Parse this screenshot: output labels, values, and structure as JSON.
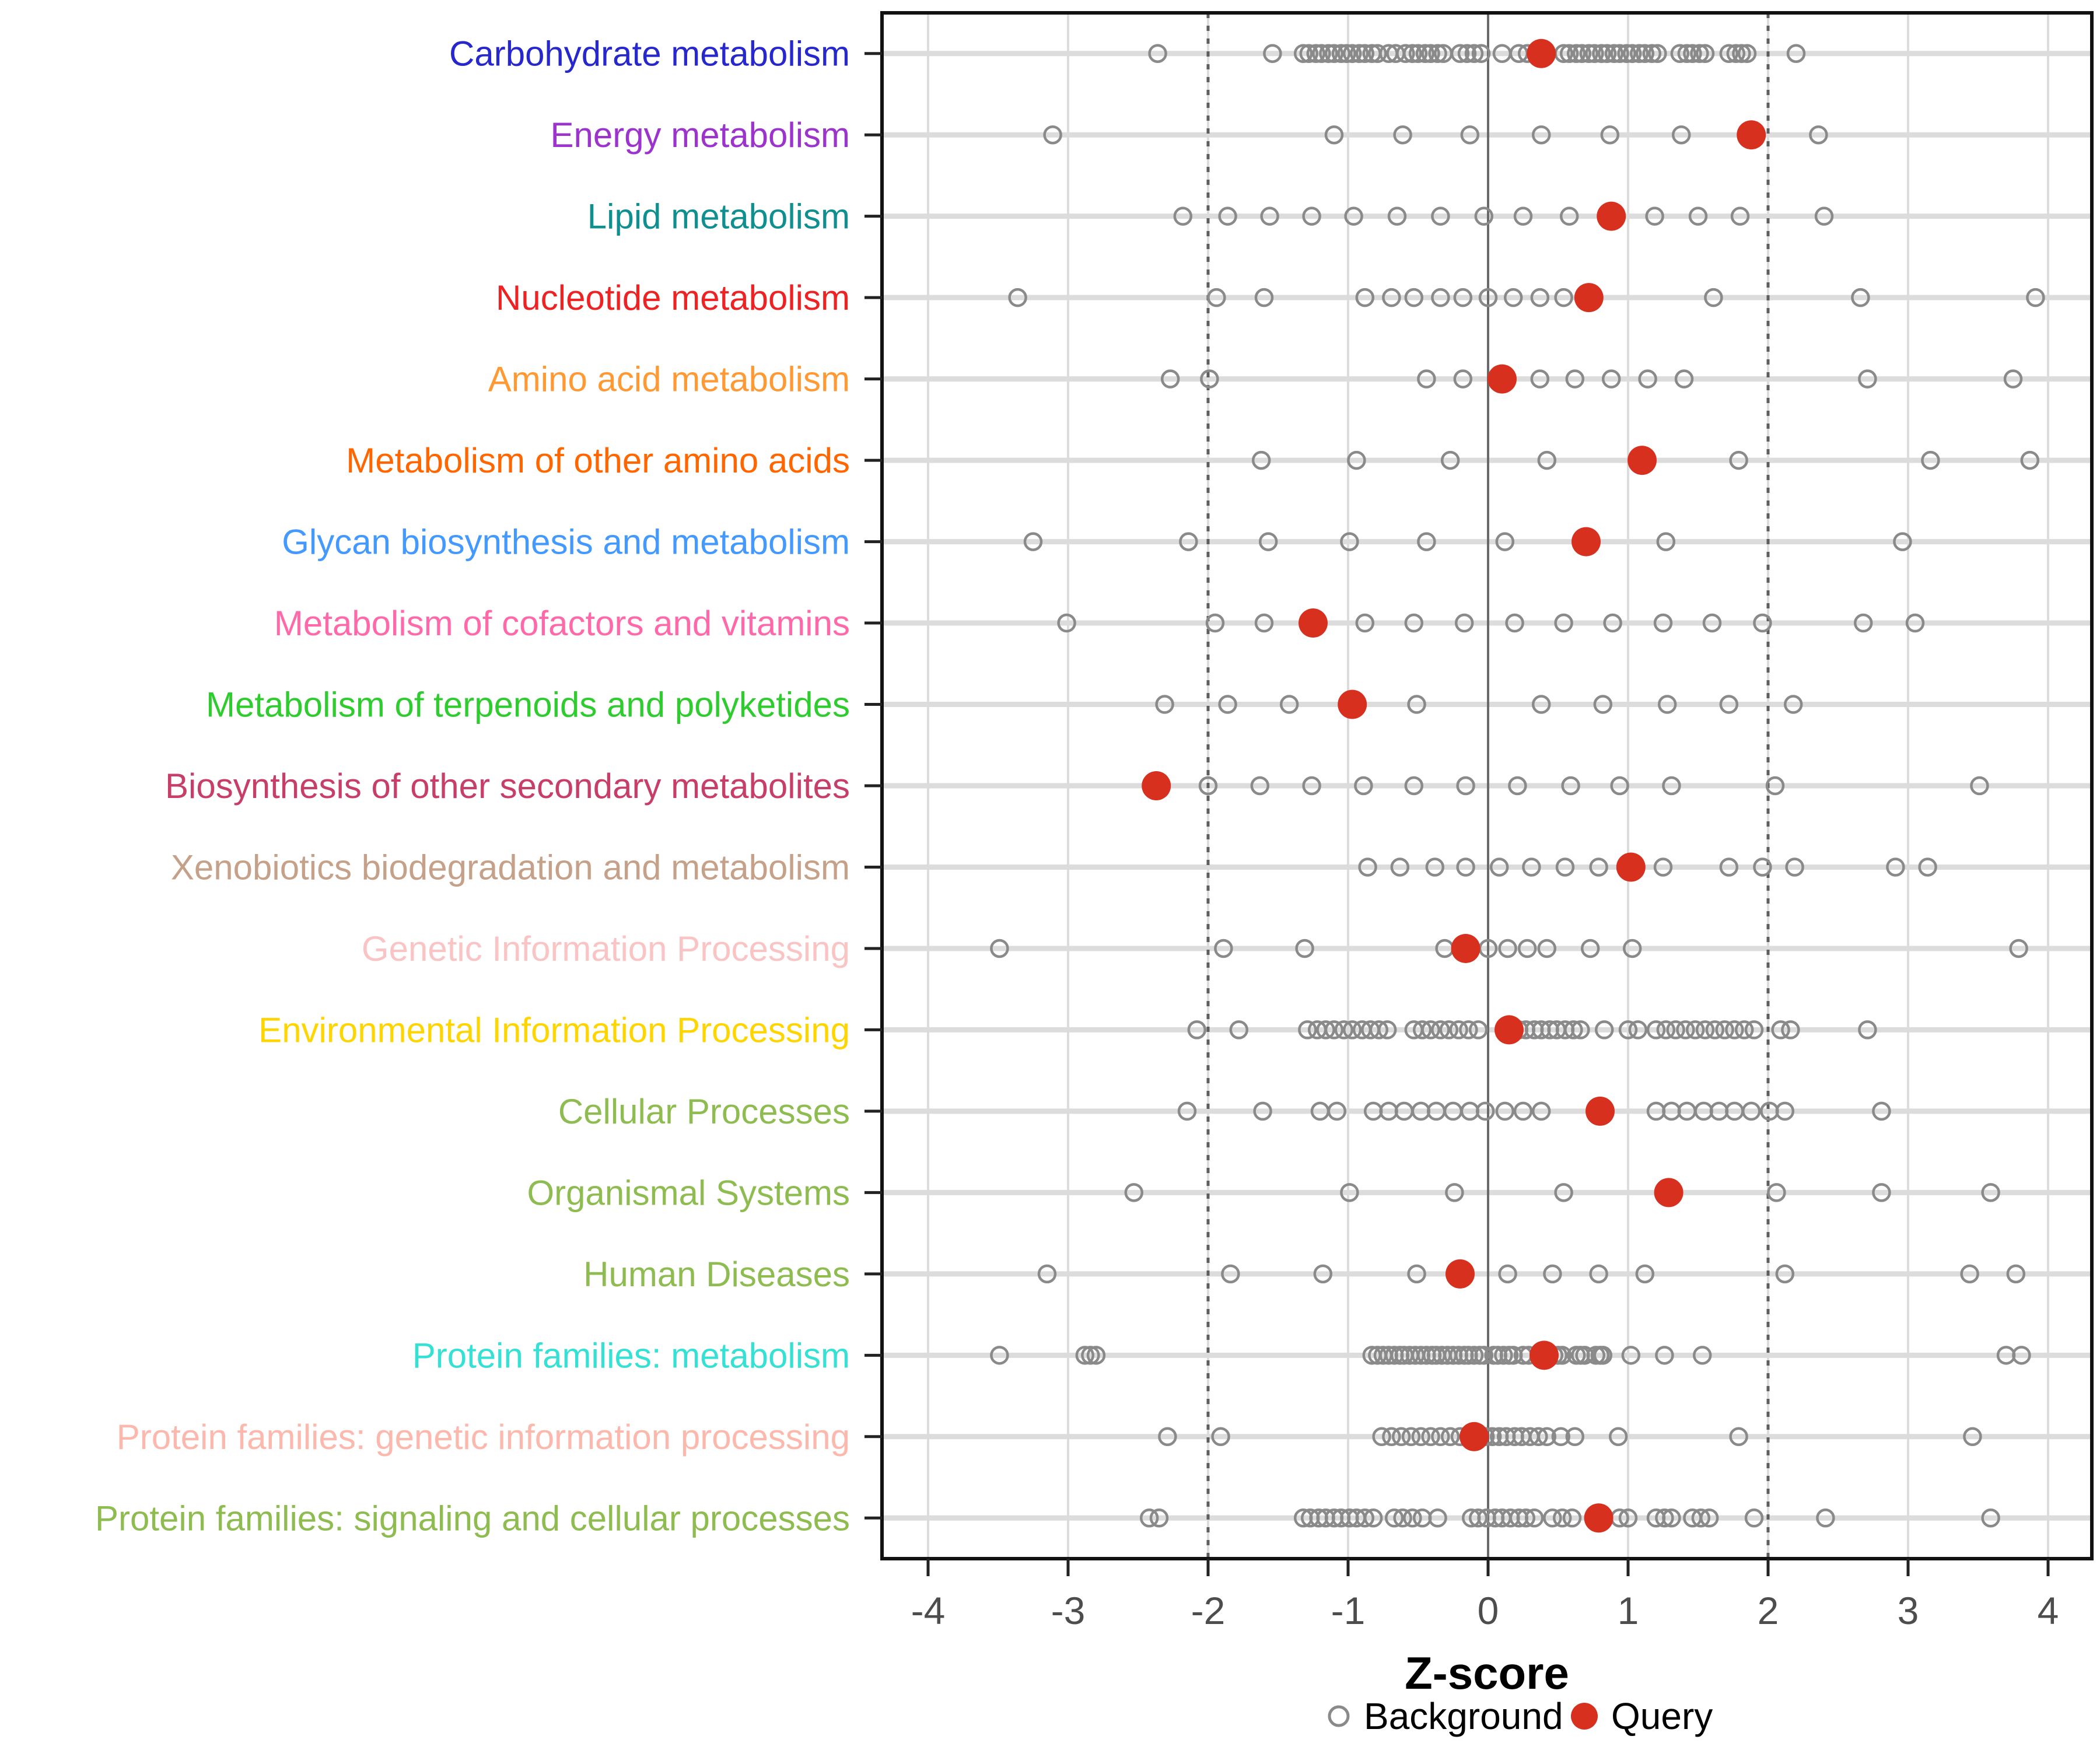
{
  "chart_data": {
    "type": "scatter",
    "title": "",
    "xlabel": "Z-score",
    "ylabel": "",
    "xlim": [
      -4.35,
      4.35
    ],
    "x_ticks": [
      -4,
      -3,
      -2,
      -1,
      0,
      1,
      2,
      3,
      4
    ],
    "zero_line": 0,
    "dashed_lines": [
      -2,
      2
    ],
    "grid": true,
    "legend_position": "bottom",
    "legend": [
      {
        "label": "Background",
        "marker": "open-circle",
        "color": "#8A8A8A"
      },
      {
        "label": "Query",
        "marker": "filled-circle",
        "color": "#D7301F"
      }
    ],
    "categories": [
      {
        "label": "Carbohydrate metabolism",
        "color": "#2727CE",
        "query": 0.38,
        "background": [
          -2.36,
          -1.54,
          -1.32,
          -1.28,
          -1.23,
          -1.19,
          -1.14,
          -1.1,
          -1.05,
          -1.01,
          -0.97,
          -0.92,
          -0.88,
          -0.83,
          -0.79,
          -0.71,
          -0.66,
          -0.59,
          -0.54,
          -0.5,
          -0.45,
          -0.41,
          -0.36,
          -0.32,
          -0.2,
          -0.15,
          -0.1,
          -0.05,
          0.1,
          0.22,
          0.28,
          0.54,
          0.58,
          0.63,
          0.67,
          0.72,
          0.76,
          0.81,
          0.85,
          0.9,
          0.94,
          0.99,
          1.03,
          1.08,
          1.12,
          1.17,
          1.21,
          1.37,
          1.42,
          1.46,
          1.51,
          1.55,
          1.72,
          1.77,
          1.81,
          1.85,
          2.2
        ]
      },
      {
        "label": "Energy metabolism",
        "color": "#9B33CC",
        "query": 1.88,
        "background": [
          -3.11,
          -1.1,
          -0.61,
          -0.13,
          0.38,
          0.87,
          1.38,
          2.36
        ]
      },
      {
        "label": "Lipid metabolism",
        "color": "#0F8F8F",
        "query": 0.88,
        "background": [
          -2.18,
          -1.86,
          -1.56,
          -1.26,
          -0.96,
          -0.65,
          -0.34,
          -0.03,
          0.25,
          0.58,
          1.19,
          1.5,
          1.8,
          2.4
        ]
      },
      {
        "label": "Nucleotide metabolism",
        "color": "#EE2222",
        "query": 0.72,
        "background": [
          -3.36,
          -1.94,
          -1.6,
          -0.88,
          -0.69,
          -0.53,
          -0.34,
          -0.18,
          0.0,
          0.18,
          0.37,
          0.54,
          1.61,
          2.66,
          3.91
        ]
      },
      {
        "label": "Amino acid metabolism",
        "color": "#FF9933",
        "query": 0.1,
        "background": [
          -2.27,
          -1.99,
          -0.44,
          -0.18,
          0.37,
          0.62,
          0.88,
          1.14,
          1.4,
          2.71,
          3.75
        ]
      },
      {
        "label": "Metabolism of other amino acids",
        "color": "#FF6600",
        "query": 1.1,
        "background": [
          -1.62,
          -0.94,
          -0.27,
          0.42,
          1.79,
          3.16,
          3.87
        ]
      },
      {
        "label": "Glycan biosynthesis and metabolism",
        "color": "#4499FF",
        "query": 0.7,
        "background": [
          -3.25,
          -2.14,
          -1.57,
          -0.99,
          -0.44,
          0.12,
          1.27,
          2.96
        ]
      },
      {
        "label": "Metabolism of cofactors and vitamins",
        "color": "#FF69A9",
        "query": -1.25,
        "background": [
          -3.01,
          -1.95,
          -1.6,
          -0.88,
          -0.53,
          -0.17,
          0.19,
          0.54,
          0.89,
          1.25,
          1.6,
          1.96,
          2.68,
          3.05
        ]
      },
      {
        "label": "Metabolism of terpenoids and polyketides",
        "color": "#2ECC2E",
        "query": -0.97,
        "background": [
          -2.31,
          -1.86,
          -1.42,
          -0.51,
          0.38,
          0.82,
          1.28,
          1.72,
          2.18
        ]
      },
      {
        "label": "Biosynthesis of other secondary metabolites",
        "color": "#C73E68",
        "query": -2.37,
        "background": [
          -2.0,
          -1.63,
          -1.26,
          -0.89,
          -0.53,
          -0.16,
          0.21,
          0.59,
          0.94,
          1.31,
          2.05,
          3.51
        ]
      },
      {
        "label": "Xenobiotics biodegradation and metabolism",
        "color": "#C6A189",
        "query": 1.02,
        "background": [
          -0.86,
          -0.63,
          -0.38,
          -0.16,
          0.08,
          0.31,
          0.55,
          0.79,
          1.25,
          1.72,
          1.96,
          2.19,
          2.91,
          3.14
        ]
      },
      {
        "label": "Genetic Information Processing",
        "color": "#FBC4C4",
        "query": -0.16,
        "background": [
          -3.49,
          -1.89,
          -1.31,
          -0.31,
          0.0,
          0.14,
          0.28,
          0.42,
          0.73,
          1.03,
          3.79
        ]
      },
      {
        "label": "Environmental Information Processing",
        "color": "#FFD500",
        "query": 0.15,
        "background": [
          -2.08,
          -1.78,
          -1.29,
          -1.22,
          -1.16,
          -1.1,
          -1.03,
          -0.97,
          -0.9,
          -0.84,
          -0.78,
          -0.72,
          -0.53,
          -0.47,
          -0.41,
          -0.34,
          -0.28,
          -0.21,
          -0.14,
          -0.07,
          0.22,
          0.27,
          0.33,
          0.38,
          0.44,
          0.49,
          0.55,
          0.61,
          0.66,
          0.83,
          1.0,
          1.07,
          1.2,
          1.27,
          1.34,
          1.41,
          1.48,
          1.55,
          1.62,
          1.69,
          1.76,
          1.83,
          1.9,
          2.09,
          2.16,
          2.71
        ]
      },
      {
        "label": "Cellular Processes",
        "color": "#8FBC50",
        "query": 0.8,
        "background": [
          -2.15,
          -1.61,
          -1.2,
          -1.08,
          -0.82,
          -0.71,
          -0.6,
          -0.48,
          -0.37,
          -0.25,
          -0.13,
          -0.02,
          0.12,
          0.25,
          0.38,
          1.2,
          1.31,
          1.42,
          1.54,
          1.65,
          1.76,
          1.88,
          2.01,
          2.12,
          2.81
        ]
      },
      {
        "label": "Organismal Systems",
        "color": "#8FBC50",
        "query": 1.29,
        "background": [
          -2.53,
          -0.99,
          -0.24,
          0.54,
          2.06,
          2.81,
          3.59
        ]
      },
      {
        "label": "Human Diseases",
        "color": "#8FBC50",
        "query": -0.2,
        "background": [
          -3.15,
          -1.84,
          -1.18,
          -0.51,
          0.14,
          0.46,
          0.79,
          1.12,
          2.12,
          3.44,
          3.77
        ]
      },
      {
        "label": "Protein families: metabolism",
        "color": "#35E1D4",
        "query": 0.4,
        "background": [
          -3.49,
          -2.88,
          -2.84,
          -2.8,
          -0.83,
          -0.79,
          -0.75,
          -0.71,
          -0.67,
          -0.63,
          -0.6,
          -0.56,
          -0.52,
          -0.48,
          -0.44,
          -0.4,
          -0.37,
          -0.33,
          -0.29,
          -0.25,
          -0.21,
          -0.17,
          -0.14,
          -0.1,
          -0.06,
          -0.03,
          0.04,
          0.07,
          0.11,
          0.15,
          0.18,
          0.25,
          0.29,
          0.47,
          0.5,
          0.53,
          0.63,
          0.66,
          0.69,
          0.77,
          0.8,
          0.82,
          1.02,
          1.26,
          1.53,
          3.7,
          3.81
        ]
      },
      {
        "label": "Protein families: genetic information processing",
        "color": "#FCB8AC",
        "query": -0.1,
        "background": [
          -2.29,
          -1.91,
          -0.76,
          -0.69,
          -0.62,
          -0.55,
          -0.48,
          -0.41,
          -0.34,
          -0.27,
          -0.2,
          -0.02,
          0.03,
          0.08,
          0.13,
          0.19,
          0.24,
          0.3,
          0.36,
          0.42,
          0.52,
          0.62,
          0.93,
          1.79,
          3.46
        ]
      },
      {
        "label": "Protein families: signaling and cellular processes",
        "color": "#8FBC50",
        "query": 0.79,
        "background": [
          -2.42,
          -2.35,
          -1.32,
          -1.27,
          -1.21,
          -1.16,
          -1.1,
          -1.05,
          -0.99,
          -0.94,
          -0.88,
          -0.82,
          -0.67,
          -0.61,
          -0.54,
          -0.47,
          -0.36,
          -0.12,
          -0.07,
          -0.01,
          0.05,
          0.1,
          0.16,
          0.22,
          0.27,
          0.33,
          0.46,
          0.53,
          0.6,
          0.94,
          1.0,
          1.2,
          1.26,
          1.31,
          1.46,
          1.52,
          1.58,
          1.9,
          2.41,
          3.59
        ]
      }
    ]
  },
  "style": {
    "background_point_color": "#8A8A8A",
    "query_point_color": "#D7301F",
    "grid_color": "#DCDCDC",
    "zero_line_color": "#6A6A6A",
    "dashed_line_color": "#5E5E5E",
    "tick_label_color": "#4D4D4D",
    "panel_border_color": "#111111"
  }
}
